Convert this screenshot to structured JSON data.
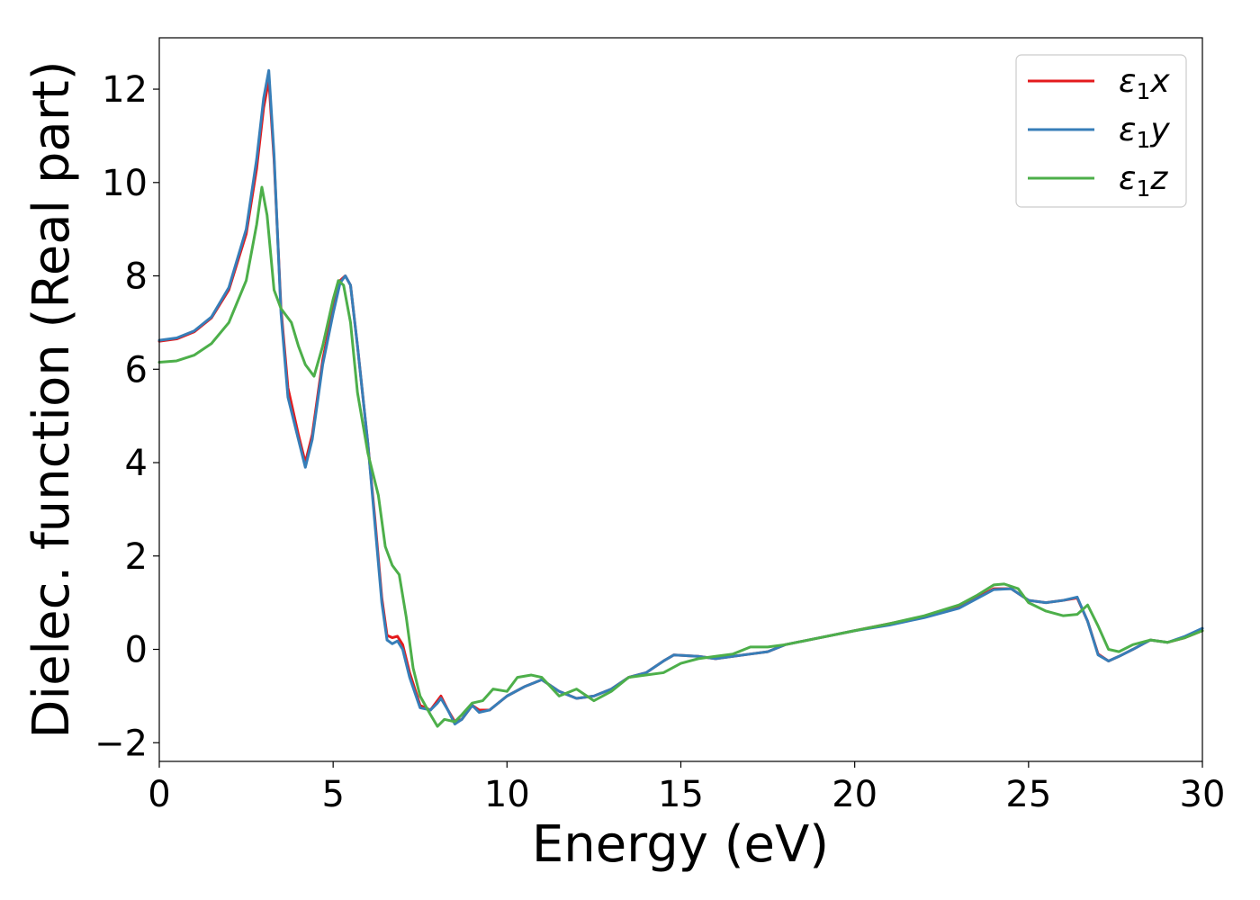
{
  "chart_data": {
    "type": "line",
    "xlabel": "Energy (eV)",
    "ylabel": "Dielec. function (Real part)",
    "xlim": [
      0,
      30
    ],
    "ylim": [
      -2.4,
      13.1
    ],
    "xticks": [
      0,
      5,
      10,
      15,
      20,
      25,
      30
    ],
    "yticks": [
      -2,
      0,
      2,
      4,
      6,
      8,
      10,
      12
    ],
    "xtick_labels": [
      "0",
      "5",
      "10",
      "15",
      "20",
      "25",
      "30"
    ],
    "ytick_labels": [
      "−2",
      "0",
      "2",
      "4",
      "6",
      "8",
      "10",
      "12"
    ],
    "grid": false,
    "legend_position": "top-right",
    "series": [
      {
        "name": "ε1x",
        "legend_base": "ε",
        "legend_sub": "1",
        "legend_suffix": "x",
        "color": "#e41a1c",
        "x": [
          0,
          0.5,
          1.0,
          1.5,
          2.0,
          2.5,
          2.8,
          3.0,
          3.15,
          3.3,
          3.5,
          3.7,
          4.0,
          4.2,
          4.4,
          4.7,
          5.0,
          5.2,
          5.35,
          5.5,
          5.7,
          6.0,
          6.2,
          6.4,
          6.55,
          6.7,
          6.85,
          7.0,
          7.2,
          7.5,
          7.8,
          8.0,
          8.1,
          8.3,
          8.5,
          8.7,
          9.0,
          9.2,
          9.5,
          10.0,
          10.5,
          11.0,
          11.5,
          12.0,
          12.5,
          13.0,
          13.5,
          14.0,
          14.5,
          14.8,
          15.5,
          16.0,
          16.5,
          17.0,
          17.5,
          18.0,
          19.0,
          20.0,
          21.0,
          22.0,
          23.0,
          23.5,
          24.0,
          24.5,
          25.0,
          25.5,
          26.0,
          26.4,
          26.7,
          27.0,
          27.3,
          27.6,
          28.0,
          28.5,
          29.0,
          29.5,
          30.0
        ],
        "y": [
          6.6,
          6.65,
          6.8,
          7.1,
          7.7,
          8.9,
          10.3,
          11.6,
          12.2,
          10.5,
          7.3,
          5.6,
          4.6,
          4.0,
          4.6,
          6.2,
          7.3,
          7.9,
          8.0,
          7.8,
          6.5,
          4.4,
          2.8,
          1.1,
          0.3,
          0.25,
          0.28,
          0.1,
          -0.5,
          -1.2,
          -1.3,
          -1.1,
          -1.0,
          -1.3,
          -1.55,
          -1.5,
          -1.2,
          -1.3,
          -1.3,
          -1.0,
          -0.8,
          -0.65,
          -0.9,
          -1.05,
          -1.0,
          -0.85,
          -0.6,
          -0.5,
          -0.25,
          -0.12,
          -0.15,
          -0.2,
          -0.15,
          -0.1,
          -0.05,
          0.1,
          0.25,
          0.4,
          0.55,
          0.7,
          0.9,
          1.1,
          1.3,
          1.3,
          1.05,
          1.0,
          1.05,
          1.1,
          0.6,
          -0.1,
          -0.25,
          -0.15,
          0.0,
          0.2,
          0.15,
          0.25,
          0.4
        ]
      },
      {
        "name": "ε1y",
        "legend_base": "ε",
        "legend_sub": "1",
        "legend_suffix": "y",
        "color": "#377eb8",
        "x": [
          0,
          0.5,
          1.0,
          1.5,
          2.0,
          2.5,
          2.8,
          3.0,
          3.15,
          3.3,
          3.5,
          3.7,
          4.0,
          4.2,
          4.4,
          4.7,
          5.0,
          5.2,
          5.35,
          5.5,
          5.7,
          6.0,
          6.2,
          6.4,
          6.55,
          6.7,
          6.85,
          7.0,
          7.2,
          7.5,
          7.8,
          8.0,
          8.1,
          8.3,
          8.5,
          8.7,
          9.0,
          9.2,
          9.5,
          10.0,
          10.5,
          11.0,
          11.5,
          12.0,
          12.5,
          13.0,
          13.5,
          14.0,
          14.5,
          14.8,
          15.5,
          16.0,
          16.5,
          17.0,
          17.5,
          18.0,
          19.0,
          20.0,
          21.0,
          22.0,
          23.0,
          23.5,
          24.0,
          24.5,
          25.0,
          25.5,
          26.0,
          26.4,
          26.7,
          27.0,
          27.3,
          27.6,
          28.0,
          28.5,
          29.0,
          29.5,
          30.0
        ],
        "y": [
          6.62,
          6.67,
          6.82,
          7.12,
          7.75,
          9.0,
          10.5,
          11.8,
          12.4,
          10.6,
          7.2,
          5.4,
          4.5,
          3.9,
          4.5,
          6.1,
          7.2,
          7.85,
          8.0,
          7.8,
          6.5,
          4.4,
          2.7,
          1.0,
          0.2,
          0.12,
          0.18,
          0.0,
          -0.6,
          -1.25,
          -1.3,
          -1.15,
          -1.05,
          -1.3,
          -1.6,
          -1.5,
          -1.2,
          -1.35,
          -1.3,
          -1.0,
          -0.8,
          -0.65,
          -0.9,
          -1.05,
          -1.0,
          -0.85,
          -0.6,
          -0.5,
          -0.25,
          -0.12,
          -0.15,
          -0.2,
          -0.15,
          -0.1,
          -0.05,
          0.1,
          0.25,
          0.4,
          0.52,
          0.68,
          0.88,
          1.08,
          1.28,
          1.3,
          1.05,
          1.0,
          1.05,
          1.12,
          0.6,
          -0.12,
          -0.25,
          -0.15,
          0.0,
          0.2,
          0.15,
          0.28,
          0.45
        ]
      },
      {
        "name": "ε1z",
        "legend_base": "ε",
        "legend_sub": "1",
        "legend_suffix": "z",
        "color": "#4daf4a",
        "x": [
          0,
          0.5,
          1.0,
          1.5,
          2.0,
          2.5,
          2.8,
          2.95,
          3.1,
          3.3,
          3.5,
          3.8,
          4.0,
          4.2,
          4.45,
          4.7,
          5.0,
          5.15,
          5.3,
          5.5,
          5.7,
          6.0,
          6.3,
          6.5,
          6.7,
          6.9,
          7.1,
          7.3,
          7.5,
          7.8,
          8.0,
          8.2,
          8.5,
          8.7,
          9.0,
          9.3,
          9.6,
          10.0,
          10.3,
          10.7,
          11.0,
          11.5,
          12.0,
          12.5,
          13.0,
          13.5,
          14.0,
          14.5,
          15.0,
          15.5,
          16.0,
          16.5,
          17.0,
          17.5,
          18.0,
          19.0,
          20.0,
          21.0,
          22.0,
          23.0,
          23.5,
          24.0,
          24.3,
          24.7,
          25.0,
          25.5,
          26.0,
          26.4,
          26.7,
          27.0,
          27.3,
          27.6,
          28.0,
          28.5,
          29.0,
          29.5,
          30.0
        ],
        "y": [
          6.15,
          6.18,
          6.3,
          6.55,
          7.0,
          7.9,
          9.1,
          9.9,
          9.3,
          7.7,
          7.3,
          7.0,
          6.5,
          6.1,
          5.85,
          6.5,
          7.5,
          7.9,
          7.8,
          7.0,
          5.5,
          4.2,
          3.3,
          2.2,
          1.8,
          1.6,
          0.7,
          -0.4,
          -1.0,
          -1.4,
          -1.65,
          -1.5,
          -1.55,
          -1.4,
          -1.15,
          -1.1,
          -0.85,
          -0.9,
          -0.6,
          -0.55,
          -0.6,
          -1.0,
          -0.85,
          -1.1,
          -0.9,
          -0.6,
          -0.55,
          -0.5,
          -0.3,
          -0.2,
          -0.15,
          -0.1,
          0.05,
          0.05,
          0.1,
          0.25,
          0.4,
          0.55,
          0.72,
          0.95,
          1.15,
          1.38,
          1.4,
          1.3,
          1.0,
          0.82,
          0.72,
          0.75,
          0.95,
          0.5,
          0.0,
          -0.05,
          0.1,
          0.2,
          0.15,
          0.25,
          0.4
        ]
      }
    ]
  }
}
